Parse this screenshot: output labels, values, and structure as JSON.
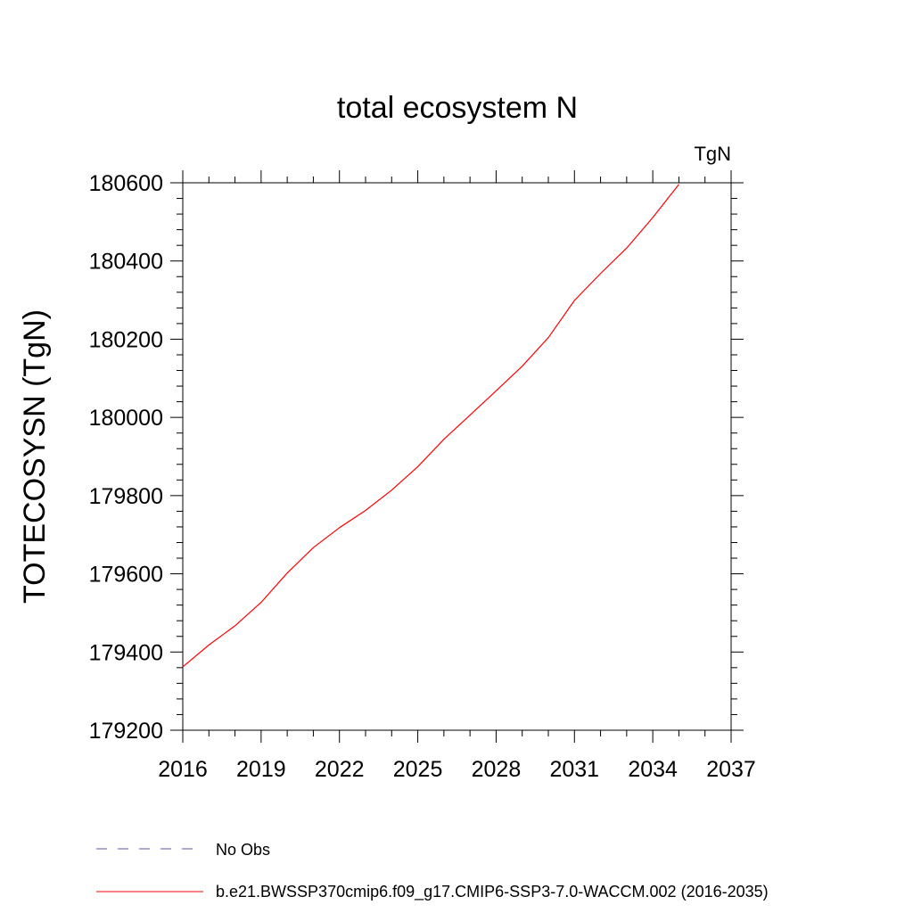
{
  "chart_data": {
    "type": "line",
    "title": "total ecosystem N",
    "units_label": "TgN",
    "xlabel": "",
    "ylabel": "TOTECOSYSN  (TgN)",
    "xlim": [
      2016,
      2037
    ],
    "ylim": [
      179200,
      180600
    ],
    "x_ticks": [
      2016,
      2019,
      2022,
      2025,
      2028,
      2031,
      2034,
      2037
    ],
    "y_ticks": [
      179200,
      179400,
      179600,
      179800,
      180000,
      180200,
      180400,
      180600
    ],
    "x_tick_labels": [
      "2016",
      "2019",
      "2022",
      "2025",
      "2028",
      "2031",
      "2034",
      "2037"
    ],
    "y_tick_labels": [
      "179200",
      "179400",
      "179600",
      "179800",
      "180000",
      "180200",
      "180400",
      "180600"
    ],
    "grid": false,
    "series": [
      {
        "name": "b.e21.BWSSP370cmip6.f09_g17.CMIP6-SSP3-7.0-WACCM.002 (2016-2035)",
        "color": "#ff0000",
        "style": "solid",
        "x": [
          2016,
          2017,
          2018,
          2019,
          2020,
          2021,
          2022,
          2023,
          2024,
          2025,
          2026,
          2027,
          2028,
          2029,
          2030,
          2031,
          2032,
          2033,
          2034,
          2035
        ],
        "y": [
          179362,
          179418,
          179467,
          179527,
          179602,
          179667,
          179718,
          179762,
          179814,
          179874,
          179944,
          180006,
          180068,
          180131,
          180204,
          180299,
          180368,
          180433,
          180511,
          180596
        ]
      }
    ],
    "legend": {
      "placement": "bottom",
      "entries": [
        {
          "label": "No Obs",
          "color": "#5a5aa8",
          "style": "dashed"
        },
        {
          "label": "b.e21.BWSSP370cmip6.f09_g17.CMIP6-SSP3-7.0-WACCM.002 (2016-2035)",
          "color": "#ff0000",
          "style": "solid"
        }
      ]
    }
  }
}
